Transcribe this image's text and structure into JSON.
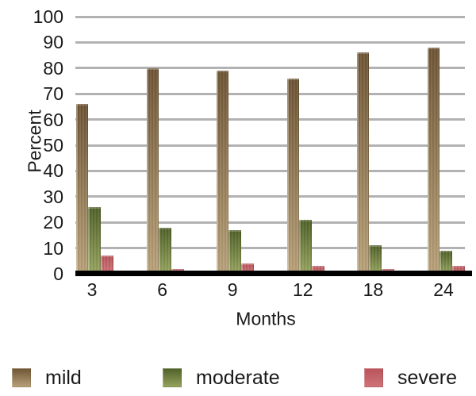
{
  "chart_data": {
    "type": "bar",
    "title": "",
    "xlabel": "Months",
    "ylabel": "Percent",
    "categories": [
      "3",
      "6",
      "9",
      "12",
      "18",
      "24"
    ],
    "series": [
      {
        "name": "mild",
        "values": [
          66,
          80,
          79,
          76,
          86,
          88
        ],
        "color_top": "#6d5434",
        "color_bottom": "#b9a27a"
      },
      {
        "name": "moderate",
        "values": [
          26,
          18,
          17,
          21,
          11,
          9
        ],
        "color_top": "#4f6027",
        "color_bottom": "#97a45f"
      },
      {
        "name": "severe",
        "values": [
          7,
          2,
          4,
          3,
          2,
          3
        ],
        "color_top": "#b8535a",
        "color_bottom": "#cf7478"
      }
    ],
    "ylim": [
      0,
      100
    ],
    "ytick_step": 10,
    "grid": true,
    "gridline_color": "#b2b2b2",
    "axis_line_color": "#000000",
    "legend_position": "bottom"
  }
}
